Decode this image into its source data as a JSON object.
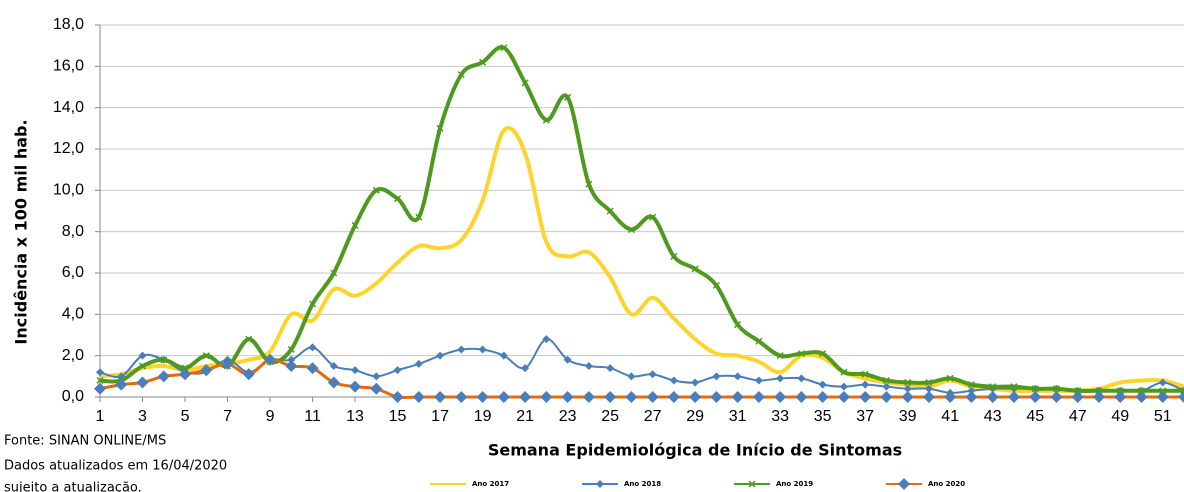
{
  "chart_data": {
    "type": "line",
    "y_label": "Incidência x 100 mil hab.",
    "x_label": "Semana Epidemiológica de Início de Sintomas",
    "notes": [
      "Fonte: SINAN ONLINE/MS",
      "Dados atualizados em  16/04/2020",
      "sujeito a atualização."
    ],
    "x": [
      1,
      2,
      3,
      4,
      5,
      6,
      7,
      8,
      9,
      10,
      11,
      12,
      13,
      14,
      15,
      16,
      17,
      18,
      19,
      20,
      21,
      22,
      23,
      24,
      25,
      26,
      27,
      28,
      29,
      30,
      31,
      32,
      33,
      34,
      35,
      36,
      37,
      38,
      39,
      40,
      41,
      42,
      43,
      44,
      45,
      46,
      47,
      48,
      49,
      50,
      51,
      52
    ],
    "xlim": [
      1,
      52
    ],
    "xticks": [
      1,
      3,
      5,
      7,
      9,
      11,
      13,
      15,
      17,
      19,
      21,
      23,
      25,
      27,
      29,
      31,
      33,
      35,
      37,
      39,
      41,
      43,
      45,
      47,
      49,
      51
    ],
    "ylim": [
      0,
      18
    ],
    "yticks": [
      {
        "value": 0,
        "label": "0,0"
      },
      {
        "value": 2,
        "label": "2,0"
      },
      {
        "value": 4,
        "label": "4,0"
      },
      {
        "value": 6,
        "label": "6,0"
      },
      {
        "value": 8,
        "label": "8,0"
      },
      {
        "value": 10,
        "label": "10,0"
      },
      {
        "value": 12,
        "label": "12,0"
      },
      {
        "value": 14,
        "label": "14,0"
      },
      {
        "value": 16,
        "label": "16,0"
      },
      {
        "value": 18,
        "label": "18,0"
      }
    ],
    "grid": true,
    "legend": "bottom",
    "series": [
      {
        "name": "Ano 2017",
        "color": "#ffd42a",
        "marker": "none",
        "width": 4,
        "values": [
          1.0,
          1.1,
          1.4,
          1.5,
          1.3,
          1.5,
          1.6,
          1.8,
          2.2,
          4.0,
          3.7,
          5.2,
          4.9,
          5.5,
          6.5,
          7.3,
          7.2,
          7.6,
          9.5,
          12.9,
          11.8,
          7.5,
          6.8,
          7.0,
          5.8,
          4.0,
          4.8,
          3.8,
          2.8,
          2.1,
          2.0,
          1.7,
          1.2,
          2.0,
          1.9,
          1.2,
          0.9,
          0.7,
          0.6,
          0.5,
          0.8,
          0.5,
          0.4,
          0.3,
          0.3,
          0.3,
          0.3,
          0.4,
          0.7,
          0.8,
          0.8,
          0.5
        ]
      },
      {
        "name": "Ano 2018",
        "color": "#4a7ebb",
        "marker": "diamond",
        "width": 2,
        "values": [
          1.2,
          1.0,
          2.0,
          1.8,
          1.2,
          1.2,
          1.8,
          1.2,
          1.8,
          1.8,
          2.4,
          1.5,
          1.3,
          1.0,
          1.3,
          1.6,
          2.0,
          2.3,
          2.3,
          2.0,
          1.4,
          2.8,
          1.8,
          1.5,
          1.4,
          1.0,
          1.1,
          0.8,
          0.7,
          1.0,
          1.0,
          0.8,
          0.9,
          0.9,
          0.6,
          0.5,
          0.6,
          0.5,
          0.4,
          0.4,
          0.2,
          0.3,
          0.4,
          0.4,
          0.4,
          0.4,
          0.3,
          0.3,
          0.3,
          0.3,
          0.7,
          0.3
        ]
      },
      {
        "name": "Ano 2019",
        "color": "#4e9a1e",
        "marker": "x",
        "width": 4,
        "values": [
          0.8,
          0.8,
          1.5,
          1.8,
          1.4,
          2.0,
          1.5,
          2.8,
          1.7,
          2.3,
          4.5,
          6.0,
          8.3,
          10.0,
          9.6,
          8.7,
          13.0,
          15.6,
          16.2,
          16.9,
          15.2,
          13.4,
          14.5,
          10.3,
          9.0,
          8.1,
          8.7,
          6.8,
          6.2,
          5.4,
          3.5,
          2.7,
          2.0,
          2.1,
          2.1,
          1.2,
          1.1,
          0.8,
          0.7,
          0.7,
          0.9,
          0.6,
          0.5,
          0.5,
          0.4,
          0.4,
          0.3,
          0.3,
          0.3,
          0.3,
          0.3,
          0.3
        ]
      },
      {
        "name": "Ano 2020",
        "color": "#e36c0a",
        "marker": "diamond-big",
        "width": 3,
        "values": [
          0.4,
          0.6,
          0.7,
          1.0,
          1.1,
          1.3,
          1.6,
          1.1,
          1.8,
          1.5,
          1.4,
          0.7,
          0.5,
          0.4,
          0,
          0,
          0,
          0,
          0,
          0,
          0,
          0,
          0,
          0,
          0,
          0,
          0,
          0,
          0,
          0,
          0,
          0,
          0,
          0,
          0,
          0,
          0,
          0,
          0,
          0,
          0,
          0,
          0,
          0,
          0,
          0,
          0,
          0,
          0,
          0,
          0,
          0
        ]
      }
    ]
  }
}
